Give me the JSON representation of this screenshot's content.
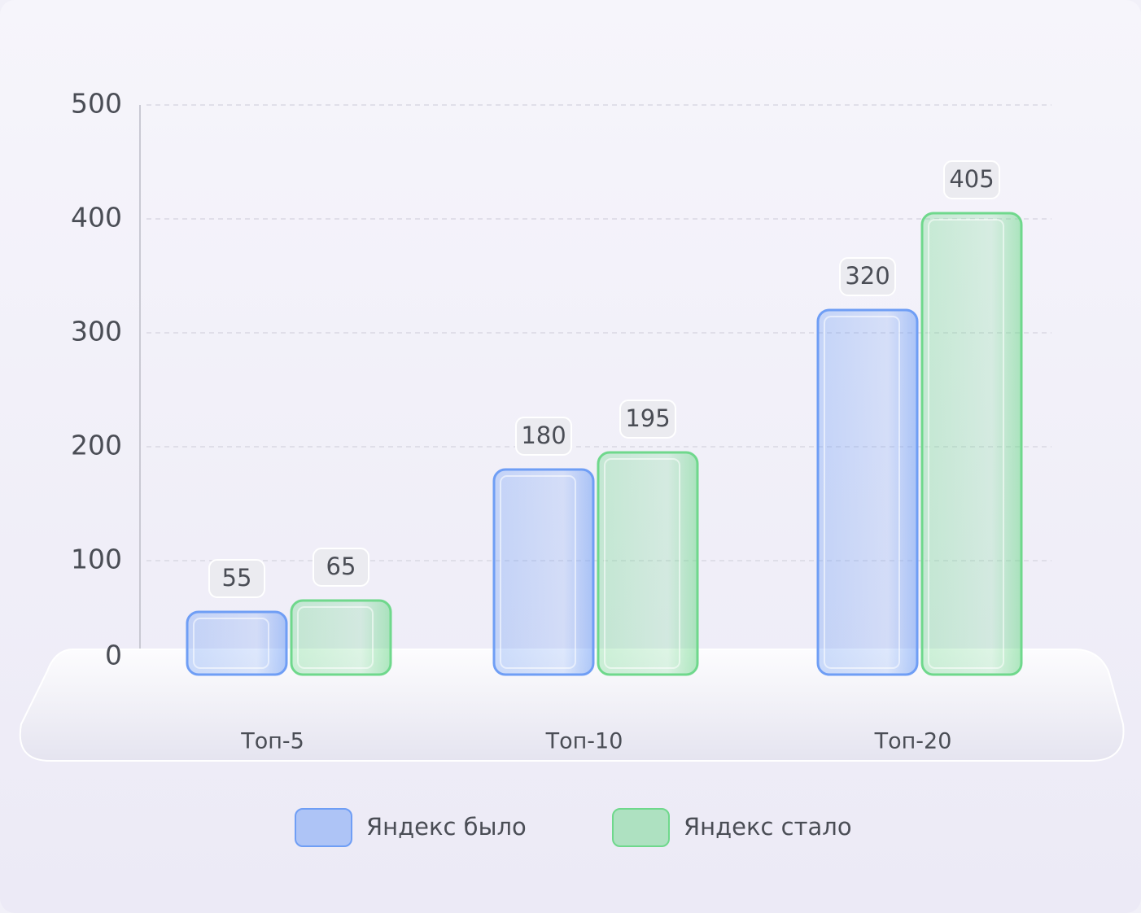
{
  "chart_data": {
    "type": "bar",
    "categories": [
      "Топ-5",
      "Топ-10",
      "Топ-20"
    ],
    "series": [
      {
        "name": "Яндекс было",
        "color": "#6f9ef5",
        "values": [
          55,
          180,
          320
        ]
      },
      {
        "name": "Яндекс стало",
        "color": "#6fd88c",
        "values": [
          65,
          195,
          405
        ]
      }
    ],
    "ylim": [
      0,
      500
    ],
    "yticks": [
      0,
      100,
      200,
      300,
      400,
      500
    ],
    "grid": true
  }
}
